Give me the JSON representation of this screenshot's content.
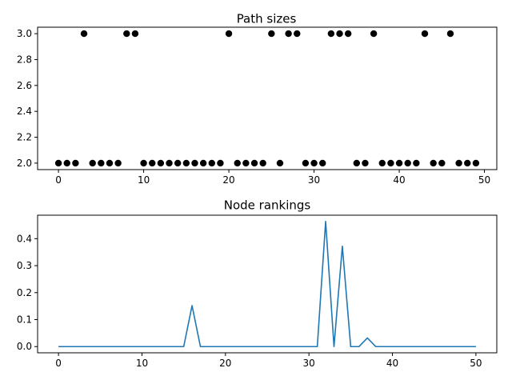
{
  "chart_data": [
    {
      "type": "scatter",
      "title": "Path sizes",
      "xlabel": "",
      "ylabel": "",
      "xlim": [
        -2.45,
        51.45
      ],
      "ylim": [
        1.95,
        3.05
      ],
      "xticks": [
        0,
        10,
        20,
        30,
        40,
        50
      ],
      "yticks": [
        2.0,
        2.2,
        2.4,
        2.6,
        2.8,
        3.0
      ],
      "xtick_labels": [
        "0",
        "10",
        "20",
        "30",
        "40",
        "50"
      ],
      "ytick_labels": [
        "2.0",
        "2.2",
        "2.4",
        "2.6",
        "2.8",
        "3.0"
      ],
      "marker_color": "#000000",
      "grid": false,
      "series": [
        {
          "x": [
            0,
            1,
            2,
            3,
            4,
            5,
            6,
            7,
            8,
            9,
            10,
            11,
            12,
            13,
            14,
            15,
            16,
            17,
            18,
            19,
            20,
            21,
            22,
            23,
            24,
            25,
            26,
            27,
            28,
            29,
            30,
            31,
            32,
            33,
            34,
            35,
            36,
            37,
            38,
            39,
            40,
            41,
            42,
            43,
            44,
            45,
            46,
            47,
            48,
            49
          ],
          "values": [
            2,
            2,
            2,
            3,
            2,
            2,
            2,
            2,
            3,
            3,
            2,
            2,
            2,
            2,
            2,
            2,
            2,
            2,
            2,
            2,
            3,
            2,
            2,
            2,
            2,
            3,
            2,
            3,
            3,
            2,
            2,
            2,
            3,
            3,
            3,
            2,
            2,
            3,
            2,
            2,
            2,
            2,
            2,
            3,
            2,
            2,
            3,
            2,
            2,
            2
          ]
        }
      ]
    },
    {
      "type": "line",
      "title": "Node rankings",
      "xlabel": "",
      "ylabel": "",
      "xlim": [
        -2.5,
        52.5
      ],
      "ylim": [
        -0.023,
        0.487
      ],
      "xticks": [
        0,
        10,
        20,
        30,
        40,
        50
      ],
      "yticks": [
        0.0,
        0.1,
        0.2,
        0.3,
        0.4
      ],
      "xtick_labels": [
        "0",
        "10",
        "20",
        "30",
        "40",
        "50"
      ],
      "ytick_labels": [
        "0.0",
        "0.1",
        "0.2",
        "0.3",
        "0.4"
      ],
      "line_color": "#1f77b4",
      "grid": false,
      "series": [
        {
          "x": [
            0,
            1,
            2,
            3,
            4,
            5,
            6,
            7,
            8,
            9,
            10,
            11,
            12,
            13,
            14,
            15,
            16,
            17,
            18,
            19,
            20,
            21,
            22,
            23,
            24,
            25,
            26,
            27,
            28,
            29,
            30,
            31,
            32,
            33,
            34,
            35,
            36,
            37,
            38,
            39,
            40,
            41,
            42,
            43,
            44,
            45,
            46,
            47,
            48,
            49,
            50
          ],
          "values": [
            0,
            0,
            0,
            0,
            0,
            0,
            0,
            0,
            0,
            0,
            0,
            0,
            0,
            0,
            0,
            0,
            0.152,
            0,
            0,
            0,
            0,
            0,
            0,
            0,
            0,
            0,
            0,
            0,
            0,
            0,
            0,
            0,
            0.464,
            0,
            0.372,
            0,
            0,
            0.032,
            0,
            0,
            0,
            0,
            0,
            0,
            0,
            0,
            0,
            0,
            0,
            0,
            0
          ]
        }
      ]
    }
  ]
}
